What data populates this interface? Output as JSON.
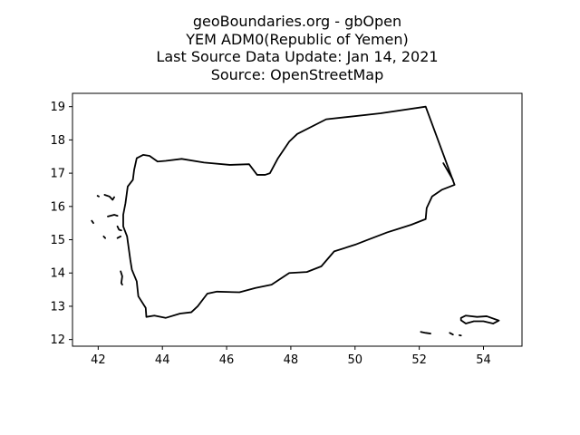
{
  "title": {
    "lines": [
      "geoBoundaries.org - gbOpen",
      "YEM ADM0(Republic of Yemen)",
      "Last Source Data Update: Jan 14, 2021",
      "Source: OpenStreetMap"
    ]
  },
  "chart_data": {
    "type": "map",
    "xlim": [
      41.2,
      55.2
    ],
    "ylim": [
      11.8,
      19.4
    ],
    "x_ticks": [
      "42",
      "44",
      "46",
      "48",
      "50",
      "52",
      "54"
    ],
    "y_ticks": [
      "12",
      "13",
      "14",
      "15",
      "16",
      "17",
      "18",
      "19"
    ],
    "grid": false,
    "line_color": "#000000",
    "shapes": [
      {
        "name": "mainland",
        "closed": true,
        "points": [
          [
            53.1,
            16.65
          ],
          [
            52.2,
            19.0
          ],
          [
            50.8,
            18.8
          ],
          [
            49.1,
            18.62
          ],
          [
            48.2,
            18.18
          ],
          [
            47.95,
            17.95
          ],
          [
            47.6,
            17.45
          ],
          [
            47.35,
            17.0
          ],
          [
            47.2,
            16.95
          ],
          [
            46.95,
            16.95
          ],
          [
            46.7,
            17.27
          ],
          [
            46.1,
            17.25
          ],
          [
            45.3,
            17.32
          ],
          [
            44.6,
            17.43
          ],
          [
            44.1,
            17.37
          ],
          [
            43.85,
            17.35
          ],
          [
            43.6,
            17.52
          ],
          [
            43.4,
            17.55
          ],
          [
            43.2,
            17.45
          ],
          [
            43.12,
            17.1
          ],
          [
            43.08,
            16.8
          ],
          [
            42.92,
            16.6
          ],
          [
            42.85,
            16.1
          ],
          [
            42.78,
            15.75
          ],
          [
            42.78,
            15.4
          ],
          [
            42.9,
            15.1
          ],
          [
            42.95,
            14.75
          ],
          [
            43.0,
            14.4
          ],
          [
            43.05,
            14.1
          ],
          [
            43.2,
            13.75
          ],
          [
            43.25,
            13.3
          ],
          [
            43.48,
            12.95
          ],
          [
            43.5,
            12.68
          ],
          [
            43.75,
            12.72
          ],
          [
            44.1,
            12.65
          ],
          [
            44.55,
            12.78
          ],
          [
            44.9,
            12.82
          ],
          [
            45.1,
            13.0
          ],
          [
            45.4,
            13.38
          ],
          [
            45.7,
            13.44
          ],
          [
            46.4,
            13.42
          ],
          [
            46.9,
            13.55
          ],
          [
            47.4,
            13.65
          ],
          [
            47.95,
            14.0
          ],
          [
            48.5,
            14.03
          ],
          [
            48.95,
            14.2
          ],
          [
            49.35,
            14.65
          ],
          [
            50.0,
            14.85
          ],
          [
            50.4,
            15.0
          ],
          [
            51.0,
            15.22
          ],
          [
            51.75,
            15.45
          ],
          [
            52.2,
            15.62
          ],
          [
            52.23,
            15.95
          ],
          [
            52.4,
            16.3
          ],
          [
            52.7,
            16.5
          ],
          [
            53.1,
            16.65
          ]
        ]
      },
      {
        "name": "socotra",
        "closed": true,
        "points": [
          [
            53.3,
            12.65
          ],
          [
            53.45,
            12.72
          ],
          [
            53.8,
            12.68
          ],
          [
            54.1,
            12.7
          ],
          [
            54.48,
            12.57
          ],
          [
            54.3,
            12.48
          ],
          [
            54.0,
            12.55
          ],
          [
            53.7,
            12.55
          ],
          [
            53.45,
            12.48
          ],
          [
            53.3,
            12.58
          ],
          [
            53.3,
            12.65
          ]
        ]
      },
      {
        "name": "abd-al-kuri",
        "closed": false,
        "points": [
          [
            52.05,
            12.23
          ],
          [
            52.2,
            12.2
          ],
          [
            52.35,
            12.18
          ]
        ]
      },
      {
        "name": "samhah",
        "closed": false,
        "points": [
          [
            52.95,
            12.2
          ],
          [
            53.05,
            12.15
          ]
        ]
      },
      {
        "name": "darsah",
        "closed": false,
        "points": [
          [
            53.25,
            12.13
          ],
          [
            53.3,
            12.12
          ]
        ]
      },
      {
        "name": "kamaran",
        "closed": false,
        "points": [
          [
            42.6,
            15.4
          ],
          [
            42.65,
            15.3
          ],
          [
            42.72,
            15.28
          ]
        ]
      },
      {
        "name": "zubair-islands",
        "closed": false,
        "points": [
          [
            42.6,
            15.05
          ],
          [
            42.7,
            15.1
          ]
        ]
      },
      {
        "name": "hanish-islands",
        "closed": false,
        "points": [
          [
            42.7,
            14.05
          ],
          [
            42.75,
            13.9
          ],
          [
            42.72,
            13.7
          ],
          [
            42.75,
            13.65
          ]
        ]
      },
      {
        "name": "farasan-fringe",
        "closed": false,
        "points": [
          [
            42.3,
            15.7
          ],
          [
            42.5,
            15.75
          ],
          [
            42.6,
            15.72
          ]
        ]
      },
      {
        "name": "northern-islets",
        "closed": false,
        "points": [
          [
            42.2,
            16.35
          ],
          [
            42.35,
            16.3
          ],
          [
            42.45,
            16.2
          ],
          [
            42.5,
            16.28
          ]
        ]
      },
      {
        "name": "kutama",
        "closed": false,
        "points": [
          [
            41.8,
            15.57
          ],
          [
            41.85,
            15.5
          ]
        ]
      },
      {
        "name": "jabal-zuqar",
        "closed": false,
        "points": [
          [
            42.17,
            15.1
          ],
          [
            42.22,
            15.05
          ]
        ]
      },
      {
        "name": "islet-west",
        "closed": false,
        "points": [
          [
            41.98,
            16.32
          ],
          [
            42.02,
            16.3
          ]
        ]
      },
      {
        "name": "coast-east-tip",
        "closed": false,
        "points": [
          [
            52.75,
            17.3
          ],
          [
            53.05,
            16.8
          ]
        ]
      }
    ]
  }
}
